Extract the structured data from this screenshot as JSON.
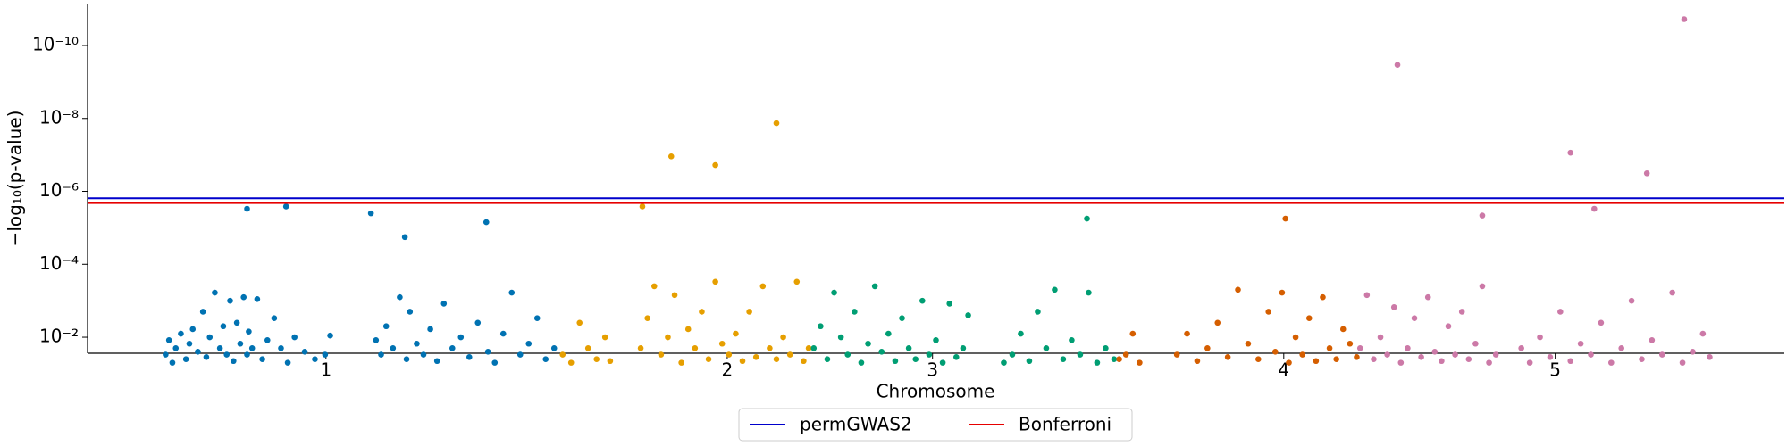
{
  "chart_data": {
    "type": "scatter",
    "xlabel": "Chromosome",
    "ylabel": "−log₁₀(p-value)",
    "xlim": [
      0,
      1000
    ],
    "xticks": [
      {
        "value": 140.5,
        "label": "1"
      },
      {
        "value": 377,
        "label": "2"
      },
      {
        "value": 498,
        "label": "3"
      },
      {
        "value": 705,
        "label": "4"
      },
      {
        "value": 865,
        "label": "5"
      }
    ],
    "ylim": [
      0.0275,
      7.5e-12
    ],
    "log_y": true,
    "yticks": [
      {
        "value": 0.01,
        "label": "10⁻²"
      },
      {
        "value": 0.0001,
        "label": "10⁻⁴"
      },
      {
        "value": 1e-06,
        "label": "10⁻⁶"
      },
      {
        "value": 1e-08,
        "label": "10⁻⁸"
      },
      {
        "value": 1e-10,
        "label": "10⁻¹⁰"
      }
    ],
    "legend": "bottom",
    "hlines": [
      {
        "name": "permGWAS2",
        "color": "#0000cc",
        "value": 1.55e-06
      },
      {
        "name": "Bonferroni",
        "color": "#e60000",
        "value": 2.1e-06
      }
    ],
    "series": [
      {
        "color": "#0072b2",
        "x": [
          46,
          48,
          50,
          52,
          55,
          58,
          60,
          62,
          65,
          68,
          70,
          72,
          75,
          78,
          80,
          82,
          84,
          86,
          88,
          90,
          92,
          94,
          95,
          97,
          100,
          103,
          106,
          110,
          114,
          118,
          122,
          128,
          134,
          140,
          143,
          94,
          117,
          170,
          173,
          176,
          180,
          184,
          188,
          190,
          194,
          198,
          202,
          206,
          210,
          215,
          220,
          225,
          230,
          236,
          240,
          245,
          250,
          255,
          260,
          265,
          270,
          275,
          167,
          187,
          235
        ],
        "values": [
          0.03,
          0.012,
          0.05,
          0.02,
          0.008,
          0.04,
          0.015,
          0.006,
          0.025,
          0.002,
          0.035,
          0.01,
          0.0006,
          0.02,
          0.005,
          0.03,
          0.001,
          0.045,
          0.004,
          0.015,
          0.0008,
          0.03,
          0.007,
          0.02,
          0.0009,
          0.04,
          0.012,
          0.003,
          0.02,
          0.05,
          0.01,
          0.025,
          0.04,
          0.03,
          0.009,
          3e-06,
          2.6e-06,
          0.012,
          0.03,
          0.005,
          0.02,
          0.0008,
          0.04,
          0.002,
          0.015,
          0.03,
          0.006,
          0.045,
          0.0012,
          0.02,
          0.01,
          0.035,
          0.004,
          0.025,
          0.05,
          0.008,
          0.0006,
          0.03,
          0.015,
          0.003,
          0.04,
          0.02,
          4e-06,
          1.8e-05,
          7e-06
        ]
      },
      {
        "color": "#e69f00",
        "x": [
          280,
          285,
          290,
          295,
          300,
          305,
          308,
          326,
          330,
          334,
          338,
          342,
          346,
          350,
          354,
          358,
          362,
          366,
          370,
          374,
          378,
          382,
          386,
          390,
          394,
          398,
          402,
          406,
          410,
          414,
          418,
          422,
          425,
          344,
          370,
          406,
          327
        ],
        "values": [
          0.03,
          0.05,
          0.004,
          0.02,
          0.04,
          0.01,
          0.045,
          0.02,
          0.003,
          0.0004,
          0.03,
          0.01,
          0.0007,
          0.05,
          0.006,
          0.02,
          0.002,
          0.04,
          0.0003,
          0.015,
          0.03,
          0.008,
          0.045,
          0.002,
          0.035,
          0.0004,
          0.02,
          0.04,
          0.01,
          0.03,
          0.0003,
          0.045,
          0.02,
          1.1e-07,
          1.9e-07,
          1.35e-08,
          2.6e-06
        ]
      },
      {
        "color": "#009e73",
        "x": [
          428,
          432,
          436,
          440,
          444,
          448,
          452,
          456,
          460,
          464,
          468,
          472,
          476,
          480,
          484,
          488,
          492,
          496,
          500,
          504,
          508,
          512,
          516,
          519,
          540,
          545,
          550,
          555,
          560,
          565,
          570,
          575,
          580,
          585,
          590,
          595,
          600,
          605,
          589
        ],
        "values": [
          0.02,
          0.005,
          0.04,
          0.0006,
          0.01,
          0.03,
          0.002,
          0.05,
          0.015,
          0.0004,
          0.025,
          0.008,
          0.045,
          0.003,
          0.02,
          0.04,
          0.001,
          0.03,
          0.012,
          0.05,
          0.0012,
          0.035,
          0.02,
          0.0025,
          0.05,
          0.03,
          0.008,
          0.045,
          0.002,
          0.02,
          0.0005,
          0.04,
          0.012,
          0.03,
          0.0006,
          0.05,
          0.02,
          0.04,
          5.6e-06
        ]
      },
      {
        "color": "#d55e00",
        "x": [
          608,
          612,
          616,
          620,
          642,
          648,
          654,
          660,
          666,
          672,
          678,
          684,
          690,
          696,
          700,
          704,
          708,
          712,
          716,
          720,
          724,
          728,
          732,
          736,
          740,
          744,
          748,
          706
        ],
        "values": [
          0.04,
          0.03,
          0.008,
          0.05,
          0.03,
          0.008,
          0.045,
          0.02,
          0.004,
          0.035,
          0.0005,
          0.015,
          0.04,
          0.002,
          0.025,
          0.0006,
          0.05,
          0.01,
          0.03,
          0.003,
          0.045,
          0.0008,
          0.02,
          0.04,
          0.006,
          0.015,
          0.035,
          5.6e-06
        ]
      },
      {
        "color": "#cc79a7",
        "x": [
          750,
          754,
          758,
          762,
          766,
          770,
          774,
          778,
          782,
          786,
          790,
          794,
          798,
          802,
          806,
          810,
          814,
          818,
          822,
          826,
          830,
          845,
          850,
          856,
          862,
          868,
          874,
          880,
          886,
          892,
          898,
          904,
          910,
          916,
          922,
          928,
          934,
          940,
          946,
          952,
          956,
          772,
          941,
          874,
          919,
          888,
          822
        ],
        "values": [
          0.02,
          0.0007,
          0.04,
          0.01,
          0.03,
          0.0015,
          0.05,
          0.02,
          0.003,
          0.035,
          0.0008,
          0.025,
          0.045,
          0.005,
          0.03,
          0.002,
          0.04,
          0.015,
          0.0004,
          0.05,
          0.03,
          0.02,
          0.05,
          0.01,
          0.035,
          0.002,
          0.045,
          0.015,
          0.03,
          0.004,
          0.05,
          0.02,
          0.001,
          0.04,
          0.012,
          0.03,
          0.0006,
          0.05,
          0.025,
          0.008,
          0.035,
          3.4e-10,
          1.9e-11,
          8.7e-08,
          3.2e-07,
          3e-06,
          4.6e-06
        ]
      }
    ]
  }
}
